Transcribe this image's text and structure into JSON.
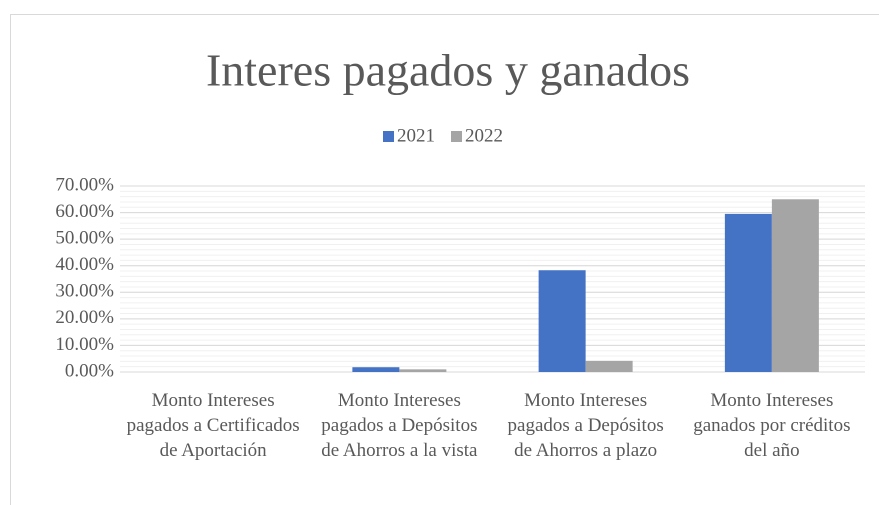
{
  "chart_data": {
    "type": "bar",
    "title": "Interes pagados y ganados",
    "categories": [
      "Monto Intereses pagados a Certificados de Aportación",
      "Monto Intereses pagados a Depósitos de Ahorros a la vista",
      "Monto Intereses pagados a Depósitos de Ahorros a plazo",
      "Monto Intereses ganados por créditos del año"
    ],
    "series": [
      {
        "name": "2021",
        "color": "#4472c4",
        "values": [
          0,
          1.8,
          38.3,
          59.5
        ]
      },
      {
        "name": "2022",
        "color": "#a5a5a5",
        "values": [
          0,
          1.0,
          4.2,
          65.0
        ]
      }
    ],
    "ylim": [
      0,
      70
    ],
    "yticks": [
      {
        "value": 0,
        "label": "0.00%"
      },
      {
        "value": 10,
        "label": "10.00%"
      },
      {
        "value": 20,
        "label": "20.00%"
      },
      {
        "value": 30,
        "label": "30.00%"
      },
      {
        "value": 40,
        "label": "40.00%"
      },
      {
        "value": 50,
        "label": "50.00%"
      },
      {
        "value": 60,
        "label": "60.00%"
      },
      {
        "value": 70,
        "label": "70.00%"
      }
    ],
    "grid": true,
    "legend": "top"
  }
}
